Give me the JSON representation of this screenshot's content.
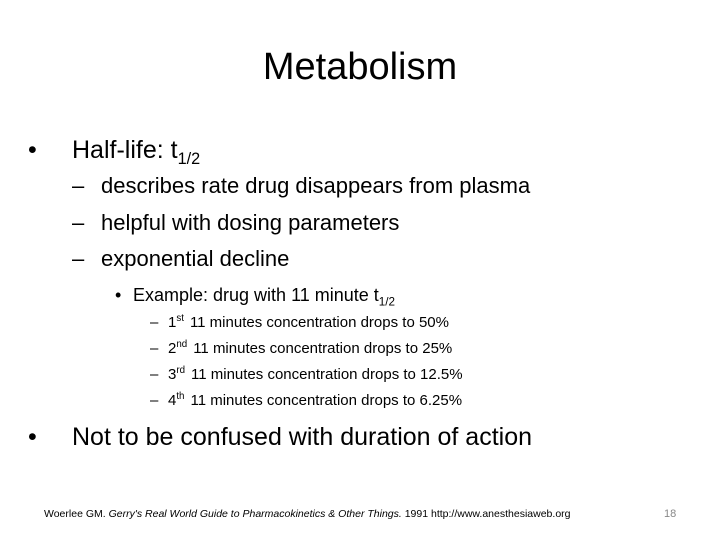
{
  "slide": {
    "title": "Metabolism",
    "bullets": [
      {
        "text": "Half-life: t",
        "sub": "1/2",
        "children": [
          {
            "text": "describes rate drug disappears from plasma"
          },
          {
            "text": "helpful with dosing parameters"
          },
          {
            "text": "exponential decline",
            "children": [
              {
                "text": "Example: drug with 11 minute t",
                "sub": "1/2",
                "children": [
                  {
                    "ordinal": "1",
                    "sup": "st",
                    "text": "11 minutes concentration drops to 50%"
                  },
                  {
                    "ordinal": "2",
                    "sup": "nd",
                    "text": "11 minutes concentration drops to 25%"
                  },
                  {
                    "ordinal": "3",
                    "sup": "rd",
                    "text": "11 minutes concentration drops to 12.5%"
                  },
                  {
                    "ordinal": "4",
                    "sup": "th",
                    "text": "11 minutes concentration drops to 6.25%"
                  }
                ]
              }
            ]
          }
        ]
      },
      {
        "text": "Not to be confused with duration of action"
      }
    ],
    "footer": {
      "author": "Woerlee GM.",
      "book": "Gerry's Real World Guide to Pharmacokinetics & Other Things.",
      "rest": "1991 http://www.anesthesiaweb.org"
    },
    "page_number": 18
  }
}
